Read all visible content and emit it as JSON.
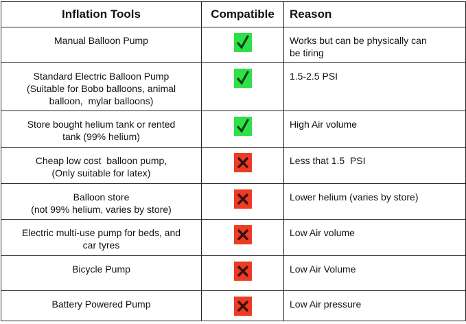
{
  "table": {
    "header": [
      "Inflation Tools",
      "Compatible",
      "Reason"
    ],
    "rows": [
      {
        "tool": [
          "Manual Balloon Pump"
        ],
        "compatible": true,
        "reason": [
          "Works but can be physically can",
          "be tiring"
        ]
      },
      {
        "tool": [
          "Standard Electric Balloon Pump",
          "(Suitable for Bobo balloons, animal",
          "balloon,  mylar balloons)"
        ],
        "compatible": true,
        "reason": [
          "1.5-2.5 PSI"
        ]
      },
      {
        "tool": [
          "Store bought helium tank or rented",
          "tank (99% helium)"
        ],
        "compatible": true,
        "reason": [
          "High Air volume"
        ]
      },
      {
        "tool": [
          "Cheap low cost  balloon pump,",
          "(Only suitable for latex)"
        ],
        "compatible": false,
        "reason": [
          "Less that 1.5  PSI"
        ]
      },
      {
        "tool": [
          "Balloon store",
          "(not 99% helium, varies by store)"
        ],
        "compatible": false,
        "reason": [
          "Lower helium (varies by store)"
        ]
      },
      {
        "tool": [
          "Electric multi-use pump for beds, and",
          "car tyres"
        ],
        "compatible": false,
        "reason": [
          "Low Air volume"
        ]
      },
      {
        "tool": [
          "Bicycle Pump"
        ],
        "compatible": false,
        "reason": [
          "Low Air Volume"
        ]
      },
      {
        "tool": [
          "Battery Powered Pump"
        ],
        "compatible": false,
        "reason": [
          "Low Air pressure"
        ]
      }
    ]
  }
}
